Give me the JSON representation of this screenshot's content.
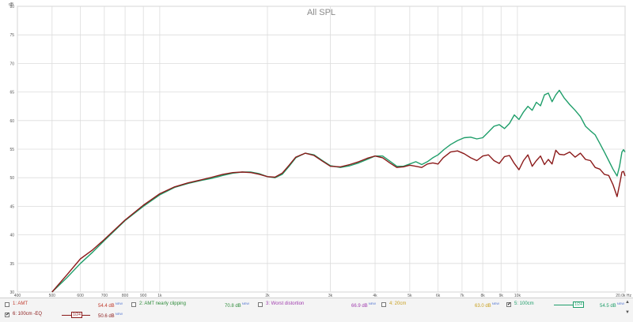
{
  "chart_data": {
    "type": "line",
    "title": "All SPL",
    "ylabel": "dB",
    "xscale": "log",
    "xlim": [
      400,
      20000
    ],
    "ylim": [
      30,
      80
    ],
    "x_ticks": [
      {
        "value": 400,
        "label": "400"
      },
      {
        "value": 500,
        "label": "500"
      },
      {
        "value": 600,
        "label": "600"
      },
      {
        "value": 700,
        "label": "700"
      },
      {
        "value": 800,
        "label": "800"
      },
      {
        "value": 900,
        "label": "900"
      },
      {
        "value": 1000,
        "label": "1k"
      },
      {
        "value": 2000,
        "label": "2k"
      },
      {
        "value": 3000,
        "label": "3k"
      },
      {
        "value": 4000,
        "label": "4k"
      },
      {
        "value": 5000,
        "label": "5k"
      },
      {
        "value": 6000,
        "label": "6k"
      },
      {
        "value": 7000,
        "label": "7k"
      },
      {
        "value": 8000,
        "label": "8k"
      },
      {
        "value": 9000,
        "label": "9k"
      },
      {
        "value": 10000,
        "label": "10k"
      },
      {
        "value": 20000,
        "label": "20.0k Hz"
      }
    ],
    "y_ticks": [
      30,
      35,
      40,
      45,
      50,
      55,
      60,
      65,
      70,
      75,
      80
    ],
    "grid": true,
    "series": [
      {
        "name": "5: 100cm",
        "color": "#1f9e6a",
        "points": [
          [
            500,
            30.0
          ],
          [
            550,
            32.5
          ],
          [
            600,
            35.0
          ],
          [
            650,
            37.0
          ],
          [
            700,
            39.0
          ],
          [
            800,
            42.5
          ],
          [
            900,
            45.0
          ],
          [
            1000,
            47.0
          ],
          [
            1100,
            48.3
          ],
          [
            1200,
            49.0
          ],
          [
            1300,
            49.5
          ],
          [
            1400,
            49.9
          ],
          [
            1500,
            50.4
          ],
          [
            1600,
            50.8
          ],
          [
            1700,
            51.0
          ],
          [
            1800,
            51.0
          ],
          [
            1900,
            50.7
          ],
          [
            2000,
            50.2
          ],
          [
            2100,
            50.0
          ],
          [
            2200,
            50.6
          ],
          [
            2300,
            52.0
          ],
          [
            2400,
            53.5
          ],
          [
            2550,
            54.3
          ],
          [
            2700,
            54.0
          ],
          [
            2850,
            53.0
          ],
          [
            3000,
            52.1
          ],
          [
            3200,
            51.8
          ],
          [
            3400,
            52.1
          ],
          [
            3600,
            52.6
          ],
          [
            3800,
            53.2
          ],
          [
            4000,
            53.8
          ],
          [
            4200,
            53.8
          ],
          [
            4400,
            52.9
          ],
          [
            4600,
            52.0
          ],
          [
            4800,
            52.0
          ],
          [
            5000,
            52.4
          ],
          [
            5200,
            52.8
          ],
          [
            5400,
            52.3
          ],
          [
            5600,
            52.8
          ],
          [
            5800,
            53.5
          ],
          [
            6000,
            54.0
          ],
          [
            6250,
            55.0
          ],
          [
            6500,
            55.8
          ],
          [
            6800,
            56.5
          ],
          [
            7100,
            57.0
          ],
          [
            7400,
            57.1
          ],
          [
            7700,
            56.8
          ],
          [
            8000,
            57.0
          ],
          [
            8300,
            58.0
          ],
          [
            8600,
            59.0
          ],
          [
            8900,
            59.3
          ],
          [
            9200,
            58.6
          ],
          [
            9500,
            59.5
          ],
          [
            9800,
            61.0
          ],
          [
            10100,
            60.2
          ],
          [
            10400,
            61.5
          ],
          [
            10700,
            62.5
          ],
          [
            11000,
            61.8
          ],
          [
            11300,
            63.2
          ],
          [
            11600,
            62.6
          ],
          [
            11900,
            64.5
          ],
          [
            12200,
            64.8
          ],
          [
            12500,
            63.3
          ],
          [
            12800,
            64.5
          ],
          [
            13100,
            65.3
          ],
          [
            13500,
            64.0
          ],
          [
            14000,
            62.8
          ],
          [
            14500,
            61.8
          ],
          [
            15000,
            60.7
          ],
          [
            15500,
            59.0
          ],
          [
            16000,
            58.2
          ],
          [
            16500,
            57.5
          ],
          [
            17000,
            56.0
          ],
          [
            17500,
            54.5
          ],
          [
            18000,
            53.0
          ],
          [
            18500,
            51.5
          ],
          [
            19000,
            50.3
          ],
          [
            19300,
            52.0
          ],
          [
            19600,
            54.5
          ],
          [
            19800,
            54.9
          ],
          [
            20000,
            54.5
          ]
        ]
      },
      {
        "name": "6: 100cm -EQ",
        "color": "#8b1a1a",
        "points": [
          [
            500,
            30.0
          ],
          [
            550,
            33.0
          ],
          [
            600,
            35.8
          ],
          [
            650,
            37.4
          ],
          [
            700,
            39.2
          ],
          [
            800,
            42.6
          ],
          [
            900,
            45.2
          ],
          [
            1000,
            47.2
          ],
          [
            1100,
            48.4
          ],
          [
            1200,
            49.1
          ],
          [
            1300,
            49.6
          ],
          [
            1400,
            50.1
          ],
          [
            1500,
            50.6
          ],
          [
            1600,
            50.9
          ],
          [
            1700,
            51.0
          ],
          [
            1800,
            50.9
          ],
          [
            1900,
            50.6
          ],
          [
            2000,
            50.2
          ],
          [
            2100,
            50.1
          ],
          [
            2200,
            50.8
          ],
          [
            2300,
            52.2
          ],
          [
            2400,
            53.6
          ],
          [
            2550,
            54.3
          ],
          [
            2700,
            53.9
          ],
          [
            2850,
            52.9
          ],
          [
            3000,
            52.0
          ],
          [
            3200,
            51.9
          ],
          [
            3400,
            52.3
          ],
          [
            3600,
            52.8
          ],
          [
            3800,
            53.4
          ],
          [
            4000,
            53.8
          ],
          [
            4200,
            53.5
          ],
          [
            4400,
            52.6
          ],
          [
            4600,
            51.8
          ],
          [
            4800,
            51.9
          ],
          [
            5000,
            52.2
          ],
          [
            5200,
            52.0
          ],
          [
            5400,
            51.8
          ],
          [
            5600,
            52.4
          ],
          [
            5800,
            52.6
          ],
          [
            6000,
            52.4
          ],
          [
            6200,
            53.5
          ],
          [
            6500,
            54.5
          ],
          [
            6800,
            54.7
          ],
          [
            7100,
            54.2
          ],
          [
            7400,
            53.5
          ],
          [
            7700,
            53.0
          ],
          [
            8000,
            53.8
          ],
          [
            8300,
            54.0
          ],
          [
            8600,
            53.0
          ],
          [
            8900,
            52.5
          ],
          [
            9200,
            53.7
          ],
          [
            9500,
            53.9
          ],
          [
            9800,
            52.5
          ],
          [
            10100,
            51.4
          ],
          [
            10400,
            53.0
          ],
          [
            10700,
            54.0
          ],
          [
            11000,
            52.0
          ],
          [
            11300,
            53.0
          ],
          [
            11600,
            53.8
          ],
          [
            11900,
            52.3
          ],
          [
            12200,
            53.2
          ],
          [
            12500,
            52.4
          ],
          [
            12800,
            54.8
          ],
          [
            13100,
            54.1
          ],
          [
            13500,
            54.0
          ],
          [
            14000,
            54.5
          ],
          [
            14500,
            53.6
          ],
          [
            15000,
            54.3
          ],
          [
            15500,
            53.2
          ],
          [
            16000,
            53.0
          ],
          [
            16500,
            51.8
          ],
          [
            17000,
            51.5
          ],
          [
            17500,
            50.6
          ],
          [
            18000,
            50.4
          ],
          [
            18500,
            48.8
          ],
          [
            19000,
            46.7
          ],
          [
            19300,
            48.8
          ],
          [
            19600,
            51.0
          ],
          [
            19800,
            51.1
          ],
          [
            20000,
            50.3
          ]
        ]
      }
    ]
  },
  "legend": {
    "rows": [
      [
        {
          "label": "1: AMT",
          "value": "54.4 dB",
          "new": "NEW",
          "checked": false,
          "color": "#c0392b"
        },
        {
          "label": "2: AMT nearly clipping",
          "value": "70.8 dB",
          "new": "NEW",
          "checked": false,
          "color": "#2e8b3a"
        },
        {
          "label": "3: Worst distortion",
          "value": "66.9 dB",
          "new": "NEW",
          "checked": false,
          "color": "#a03cae"
        },
        {
          "label": "4: 20cm",
          "value": "63.0 dB",
          "new": "NEW",
          "checked": false,
          "color": "#c8a020"
        },
        {
          "label": "5: 100cm",
          "value": "54.5 dB",
          "new": "NEW",
          "checked": true,
          "color": "#1f9e6a",
          "smoothing": "1/24"
        }
      ],
      [
        {
          "label": "6: 100cm -EQ",
          "value": "50.6 dB",
          "new": "NEW",
          "checked": true,
          "color": "#8b1a1a",
          "smoothing": "1/24"
        }
      ]
    ],
    "check_mark": "✔",
    "scroll_up": "▲",
    "scroll_down": "▼"
  }
}
